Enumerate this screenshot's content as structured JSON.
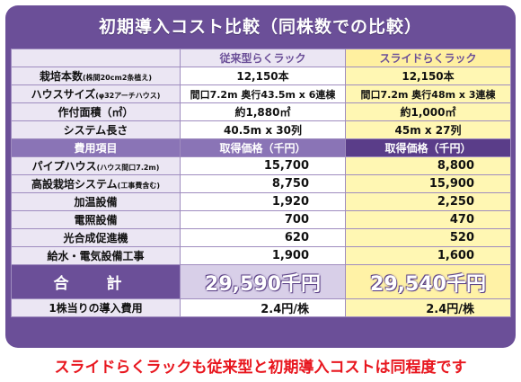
{
  "title": "初期導入コスト比較（同株数での比較）",
  "headers": {
    "conventional": "従来型らくラック",
    "slide": "スライドらくラック"
  },
  "spec_rows": [
    {
      "label": "栽培本数",
      "note": "(株間20cm2条植え)",
      "a": "12,150本",
      "b": "12,150本"
    },
    {
      "label": "ハウスサイズ",
      "note": "(φ32アーチハウス)",
      "a": "間口7.2m 奥行43.5m x 6連棟",
      "b": "間口7.2m 奥行48m x 3連棟"
    },
    {
      "label": "作付面積（㎡）",
      "note": "",
      "a": "約1,880㎡",
      "b": "約1,000㎡"
    },
    {
      "label": "システム長さ",
      "note": "",
      "a": "40.5m x 30列",
      "b": "45m x 27列"
    }
  ],
  "subheader": {
    "label": "費用項目",
    "a": "取得価格（千円）",
    "b": "取得価格（千円）"
  },
  "cost_rows": [
    {
      "label": "パイプハウス",
      "note": "(ハウス間口7.2m)",
      "a": "15,700",
      "b": "8,800"
    },
    {
      "label": "高設栽培システム",
      "note": "(工事費含む)",
      "a": "8,750",
      "b": "15,900"
    },
    {
      "label": "加温設備",
      "note": "",
      "a": "1,920",
      "b": "2,250"
    },
    {
      "label": "電照設備",
      "note": "",
      "a": "700",
      "b": "470"
    },
    {
      "label": "光合成促進機",
      "note": "",
      "a": "620",
      "b": "520"
    },
    {
      "label": "給水・電気設備工事",
      "note": "",
      "a": "1,900",
      "b": "1,600"
    }
  ],
  "total": {
    "label": "合 計",
    "a": "29,590千円",
    "b": "29,540千円"
  },
  "per_unit": {
    "label": "1株当りの導入費用",
    "a": "2.4円/株",
    "b": "2.4円/株"
  },
  "footer": "スライドらくラックも従来型と初期導入コストは同程度です",
  "colors": {
    "frame": "#6b4f98",
    "accent_yellow": "#fff7b3",
    "footer_red": "#e8161e"
  }
}
